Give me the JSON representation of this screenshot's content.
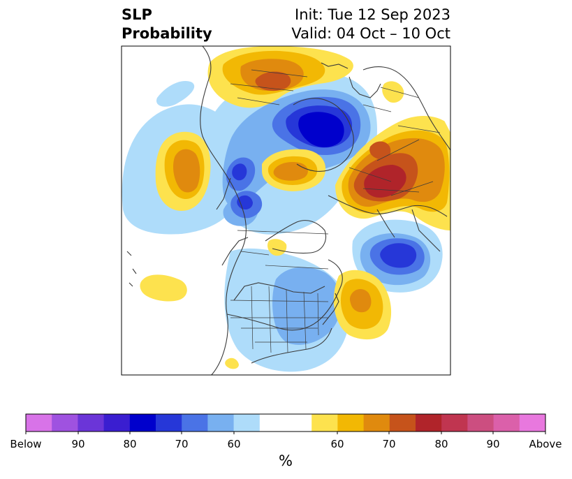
{
  "title": {
    "left_line1": "SLP",
    "left_line2": "Probability",
    "right_line1": "Init: Tue 12 Sep 2023",
    "right_line2": "Valid: 04 Oct – 10 Oct"
  },
  "colors": {
    "below": [
      "#d873e8",
      "#9f52e0",
      "#6b35d8",
      "#3a1ed0",
      "#0000cc",
      "#2637d8",
      "#4a73e6",
      "#78b0f0",
      "#aedcfa"
    ],
    "neutral": "#ffffff",
    "above": [
      "#fde24e",
      "#f2b804",
      "#e08a0e",
      "#c6531b",
      "#b0242a",
      "#c03550",
      "#cc4e80",
      "#db60aa",
      "#e878de"
    ]
  },
  "colorbar": {
    "labels": [
      "Below",
      "90",
      "80",
      "70",
      "60",
      "60",
      "70",
      "80",
      "90",
      "Above"
    ],
    "unit": "%"
  }
}
